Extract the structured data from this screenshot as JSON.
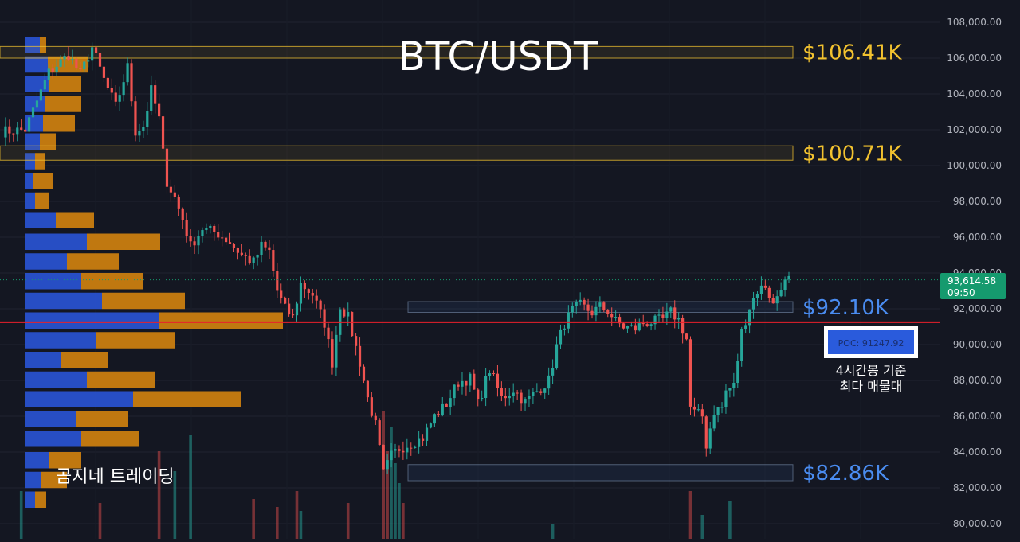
{
  "chart_data": {
    "type": "candlestick",
    "title": "BTC/USDT",
    "watermark": "곰지네 트레이딩",
    "colors": {
      "background": "#141722",
      "grid": "#1f2330",
      "bull": "#26a69a",
      "bear": "#ef5350",
      "volume_profile_up": "#2a54d6",
      "volume_profile_down": "#d3830f",
      "level_gold": "#f2c22f",
      "level_blue": "#4a8cf0",
      "poc_line": "#e8202b",
      "price_tag": "#159a6e"
    },
    "y_axis": {
      "ylim": [
        79500,
        108800
      ],
      "ticks": [
        "108,000.00",
        "106,000.00",
        "104,000.00",
        "102,000.00",
        "100,000.00",
        "98,000.00",
        "96,000.00",
        "94,000.00",
        "92,000.00",
        "90,000.00",
        "88,000.00",
        "86,000.00",
        "84,000.00",
        "82,000.00",
        "80,000.00"
      ],
      "tick_values": [
        108000,
        106000,
        104000,
        102000,
        100000,
        98000,
        96000,
        94000,
        92000,
        90000,
        88000,
        86000,
        84000,
        82000,
        80000
      ]
    },
    "current_price": {
      "value": 93614.58,
      "label": "93,614.58",
      "countdown": "09:50"
    },
    "levels": [
      {
        "label": "$106.41K",
        "low": 106000,
        "high": 106650,
        "style": "gold"
      },
      {
        "label": "$100.71K",
        "low": 100300,
        "high": 101100,
        "style": "gold"
      },
      {
        "label": "$92.10K",
        "low": 91800,
        "high": 92400,
        "style": "blue"
      },
      {
        "label": "$82.86K",
        "low": 82400,
        "high": 83300,
        "style": "blue"
      }
    ],
    "poc": {
      "value": 91247.92,
      "label": "POC: 91247.92",
      "note_line1": "4시간봉 기준",
      "note_line2": "최다 매물대"
    },
    "volume_profile": [
      {
        "price": 106700,
        "up": 18,
        "down": 8
      },
      {
        "price": 105600,
        "up": 28,
        "down": 50
      },
      {
        "price": 104500,
        "up": 30,
        "down": 40
      },
      {
        "price": 103400,
        "up": 25,
        "down": 45
      },
      {
        "price": 102300,
        "up": 22,
        "down": 40
      },
      {
        "price": 101300,
        "up": 18,
        "down": 20
      },
      {
        "price": 100200,
        "up": 12,
        "down": 12
      },
      {
        "price": 99100,
        "up": 10,
        "down": 25
      },
      {
        "price": 98000,
        "up": 12,
        "down": 18
      },
      {
        "price": 96900,
        "up": 38,
        "down": 48
      },
      {
        "price": 95700,
        "up": 77,
        "down": 92
      },
      {
        "price": 94600,
        "up": 52,
        "down": 65
      },
      {
        "price": 93500,
        "up": 70,
        "down": 78
      },
      {
        "price": 92400,
        "up": 96,
        "down": 104
      },
      {
        "price": 91300,
        "up": 168,
        "down": 155
      },
      {
        "price": 90200,
        "up": 89,
        "down": 98
      },
      {
        "price": 89100,
        "up": 45,
        "down": 59
      },
      {
        "price": 88000,
        "up": 77,
        "down": 85
      },
      {
        "price": 86900,
        "up": 135,
        "down": 136
      },
      {
        "price": 85800,
        "up": 63,
        "down": 66
      },
      {
        "price": 84700,
        "up": 70,
        "down": 72
      },
      {
        "price": 83500,
        "up": 30,
        "down": 40
      },
      {
        "price": 82400,
        "up": 20,
        "down": 32
      },
      {
        "price": 81300,
        "up": 12,
        "down": 14
      }
    ],
    "anchors": [
      [
        0,
        101900
      ],
      [
        6,
        102000
      ],
      [
        12,
        105200
      ],
      [
        17,
        106200
      ],
      [
        20,
        105100
      ],
      [
        23,
        106600
      ],
      [
        26,
        104800
      ],
      [
        29,
        103300
      ],
      [
        32,
        105500
      ],
      [
        34,
        101900
      ],
      [
        36,
        102200
      ],
      [
        38,
        104200
      ],
      [
        40,
        102600
      ],
      [
        41,
        100700
      ],
      [
        42,
        99100
      ],
      [
        44,
        98200
      ],
      [
        46,
        97000
      ],
      [
        48,
        95500
      ],
      [
        51,
        96500
      ],
      [
        55,
        96200
      ],
      [
        58,
        95700
      ],
      [
        61,
        95000
      ],
      [
        64,
        94600
      ],
      [
        66,
        95500
      ],
      [
        68,
        95200
      ],
      [
        70,
        93000
      ],
      [
        72,
        92000
      ],
      [
        74,
        91500
      ],
      [
        76,
        93400
      ],
      [
        79,
        92800
      ],
      [
        82,
        91200
      ],
      [
        84,
        89000
      ],
      [
        86,
        92200
      ],
      [
        88,
        91500
      ],
      [
        91,
        89000
      ],
      [
        93,
        87000
      ],
      [
        95,
        85500
      ],
      [
        97,
        82800
      ],
      [
        99,
        83800
      ],
      [
        101,
        84200
      ],
      [
        104,
        84500
      ],
      [
        107,
        84800
      ],
      [
        110,
        86000
      ],
      [
        113,
        86700
      ],
      [
        116,
        87900
      ],
      [
        119,
        88100
      ],
      [
        121,
        86700
      ],
      [
        124,
        88600
      ],
      [
        127,
        87000
      ],
      [
        130,
        87500
      ],
      [
        133,
        86800
      ],
      [
        136,
        87400
      ],
      [
        139,
        88000
      ],
      [
        141,
        89900
      ],
      [
        143,
        91200
      ],
      [
        145,
        91900
      ],
      [
        147,
        92200
      ],
      [
        150,
        91800
      ],
      [
        152,
        92100
      ],
      [
        154,
        91900
      ],
      [
        156,
        91300
      ],
      [
        158,
        91000
      ],
      [
        161,
        90900
      ],
      [
        163,
        91200
      ],
      [
        166,
        91300
      ],
      [
        168,
        91400
      ],
      [
        170,
        91800
      ],
      [
        172,
        91400
      ],
      [
        174,
        90300
      ],
      [
        175,
        86500
      ],
      [
        176,
        86200
      ],
      [
        178,
        86000
      ],
      [
        179,
        84400
      ],
      [
        181,
        86300
      ],
      [
        183,
        86500
      ],
      [
        184,
        87400
      ],
      [
        186,
        87700
      ],
      [
        188,
        90700
      ],
      [
        190,
        92100
      ],
      [
        192,
        93000
      ],
      [
        194,
        93300
      ],
      [
        196,
        92200
      ],
      [
        198,
        93300
      ],
      [
        200,
        93614
      ]
    ],
    "volume_bars": [
      {
        "i": 5,
        "v": 60,
        "dir": "up"
      },
      {
        "i": 25,
        "v": 45,
        "dir": "down"
      },
      {
        "i": 40,
        "v": 110,
        "dir": "down"
      },
      {
        "i": 44,
        "v": 85,
        "dir": "up"
      },
      {
        "i": 48,
        "v": 130,
        "dir": "up"
      },
      {
        "i": 64,
        "v": 50,
        "dir": "down"
      },
      {
        "i": 70,
        "v": 40,
        "dir": "down"
      },
      {
        "i": 75,
        "v": 60,
        "dir": "down"
      },
      {
        "i": 76,
        "v": 35,
        "dir": "up"
      },
      {
        "i": 88,
        "v": 45,
        "dir": "down"
      },
      {
        "i": 97,
        "v": 160,
        "dir": "down"
      },
      {
        "i": 98,
        "v": 110,
        "dir": "down"
      },
      {
        "i": 99,
        "v": 140,
        "dir": "up"
      },
      {
        "i": 100,
        "v": 95,
        "dir": "up"
      },
      {
        "i": 101,
        "v": 70,
        "dir": "up"
      },
      {
        "i": 102,
        "v": 45,
        "dir": "down"
      },
      {
        "i": 140,
        "v": 18,
        "dir": "up"
      },
      {
        "i": 175,
        "v": 60,
        "dir": "down"
      },
      {
        "i": 178,
        "v": 30,
        "dir": "up"
      },
      {
        "i": 185,
        "v": 48,
        "dir": "up"
      }
    ]
  }
}
